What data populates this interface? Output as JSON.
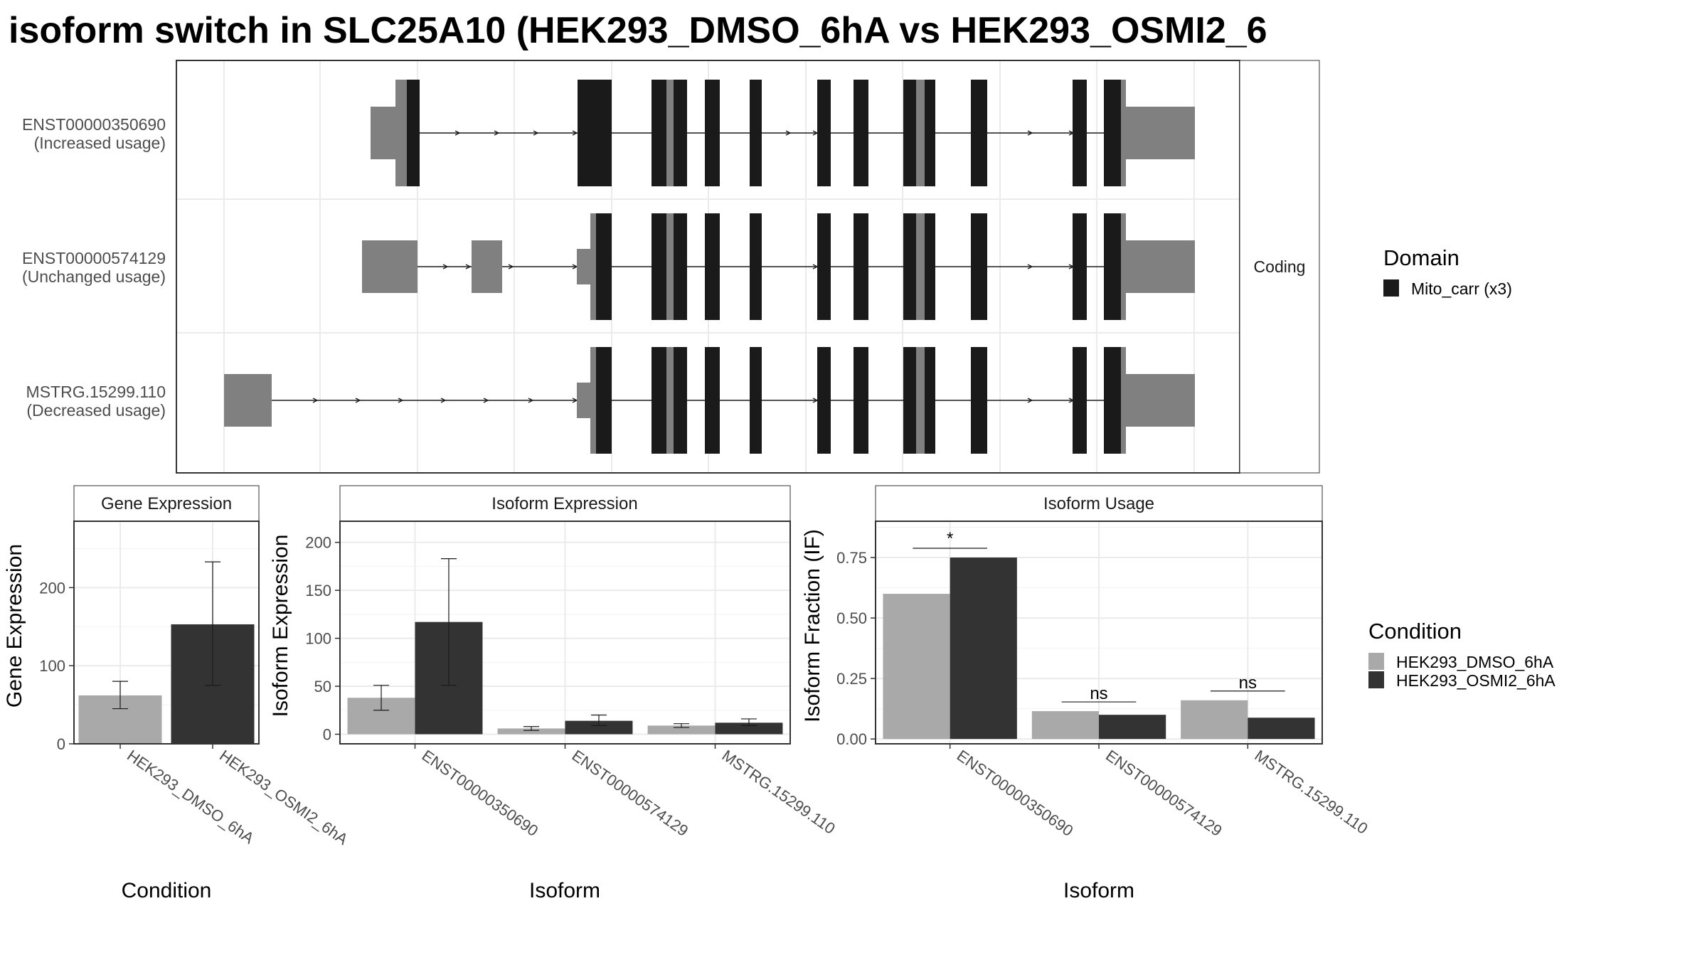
{
  "title": "isoform switch in SLC25A10 (HEK293_DMSO_6hA vs HEK293_OSMI2_6",
  "colors": {
    "dmso": "#a9a9a9",
    "osmi2": "#333333",
    "utr": "#808080",
    "domain": "#1a1a1a",
    "grid": "#ebebeb",
    "panel_border": "#333333",
    "strip_fill": "#ffffff"
  },
  "chart_data": [
    {
      "type": "transcript_structure",
      "strip_label": "Coding",
      "transcripts": [
        {
          "id": "ENST00000350690",
          "label": "(Increased usage)"
        },
        {
          "id": "ENST00000574129",
          "label": "(Unchanged usage)"
        },
        {
          "id": "MSTRG.15299.110",
          "label": "(Decreased usage)"
        }
      ],
      "legend": {
        "title": "Domain",
        "entries": [
          "Mito_carr (x3)"
        ]
      }
    },
    {
      "type": "bar",
      "strip_label": "Gene Expression",
      "categories": [
        "HEK293_DMSO_6hA",
        "HEK293_OSMI2_6hA"
      ],
      "values": [
        62,
        153
      ],
      "error_low": [
        45,
        75
      ],
      "error_high": [
        80,
        233
      ],
      "xlabel": "Condition",
      "ylabel": "Gene Expression",
      "ylim": [
        0,
        285
      ],
      "yticks": [
        "0",
        "100",
        "200"
      ]
    },
    {
      "type": "bar",
      "strip_label": "Isoform Expression",
      "categories": [
        "ENST00000350690",
        "ENST00000574129",
        "MSTRG.15299.110"
      ],
      "series": [
        {
          "name": "HEK293_DMSO_6hA",
          "values": [
            38,
            6,
            9
          ],
          "error_low": [
            25,
            4,
            7
          ],
          "error_high": [
            51,
            8,
            11
          ]
        },
        {
          "name": "HEK293_OSMI2_6hA",
          "values": [
            117,
            14,
            12
          ],
          "error_low": [
            51,
            9,
            9
          ],
          "error_high": [
            183,
            20,
            16
          ]
        }
      ],
      "xlabel": "Isoform",
      "ylabel": "Isoform Expression",
      "ylim": [
        -10,
        222
      ],
      "yticks": [
        "0",
        "50",
        "100",
        "150",
        "200"
      ]
    },
    {
      "type": "bar",
      "strip_label": "Isoform Usage",
      "categories": [
        "ENST00000350690",
        "ENST00000574129",
        "MSTRG.15299.110"
      ],
      "series": [
        {
          "name": "HEK293_DMSO_6hA",
          "values": [
            0.6,
            0.115,
            0.16
          ]
        },
        {
          "name": "HEK293_OSMI2_6hA",
          "values": [
            0.75,
            0.1,
            0.088
          ]
        }
      ],
      "significance": [
        "*",
        "ns",
        "ns"
      ],
      "xlabel": "Isoform",
      "ylabel": "Isoform Fraction (IF)",
      "ylim": [
        -0.02,
        0.9
      ],
      "yticks": [
        "0.00",
        "0.25",
        "0.50",
        "0.75"
      ]
    }
  ],
  "condition_legend": {
    "title": "Condition",
    "entries": [
      "HEK293_DMSO_6hA",
      "HEK293_OSMI2_6hA"
    ]
  }
}
